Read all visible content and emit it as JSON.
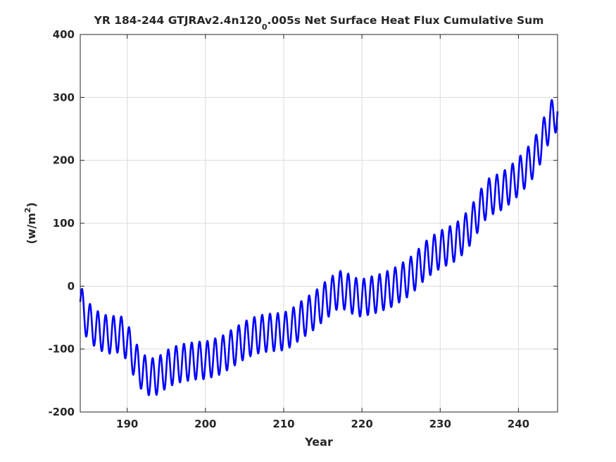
{
  "chart_data": {
    "type": "line",
    "title": {
      "before_subscript": "YR 184-244 GTJRAv2.4n120",
      "subscript": "0",
      "after_subscript": ".005s Net Surface Heat Flux  Cumulative Sum"
    },
    "xlabel": "Year",
    "ylabel": {
      "base": "(w/m",
      "superscript": "2",
      "close": ")"
    },
    "xlim": [
      184,
      245
    ],
    "ylim": [
      -200,
      400
    ],
    "xticks": [
      190,
      200,
      210,
      220,
      230,
      240
    ],
    "yticks": [
      -200,
      -100,
      0,
      100,
      200,
      300,
      400
    ],
    "xtick_labels": [
      "190",
      "200",
      "210",
      "220",
      "230",
      "240"
    ],
    "ytick_labels": [
      "-200",
      "-100",
      "0",
      "100",
      "200",
      "300",
      "400"
    ],
    "grid": true,
    "series_color": "#0000ff",
    "seasonal_cycle": {
      "period_years": 1.0,
      "amplitude_wm2": 30,
      "phase_offset_years": 0.25
    },
    "trend": {
      "x": [
        184.0,
        184.5,
        185.0,
        186.0,
        187.0,
        188.0,
        189.0,
        190.0,
        191.0,
        192.0,
        193.0,
        194.0,
        195.0,
        196.0,
        197.0,
        198.0,
        199.0,
        200.0,
        201.0,
        202.0,
        203.0,
        204.0,
        205.0,
        206.0,
        207.0,
        208.0,
        209.0,
        210.0,
        211.0,
        212.0,
        213.0,
        214.0,
        215.0,
        216.0,
        217.0,
        218.0,
        219.0,
        220.0,
        221.0,
        222.0,
        223.0,
        224.0,
        225.0,
        226.0,
        227.0,
        228.0,
        229.0,
        230.0,
        231.0,
        232.0,
        233.0,
        234.0,
        235.0,
        236.0,
        237.0,
        238.0,
        239.0,
        240.0,
        241.0,
        242.0,
        243.0,
        244.0,
        245.0
      ],
      "y": [
        -25,
        -45,
        -55,
        -68,
        -75,
        -78,
        -75,
        -88,
        -118,
        -138,
        -145,
        -142,
        -132,
        -126,
        -122,
        -120,
        -118,
        -118,
        -114,
        -110,
        -102,
        -94,
        -86,
        -80,
        -76,
        -74,
        -73,
        -72,
        -66,
        -56,
        -47,
        -38,
        -26,
        -16,
        -5,
        -8,
        -16,
        -19,
        -15,
        -12,
        -7,
        -2,
        6,
        14,
        26,
        40,
        50,
        58,
        64,
        70,
        82,
        98,
        120,
        140,
        146,
        152,
        162,
        174,
        188,
        204,
        230,
        262,
        278
      ]
    }
  }
}
